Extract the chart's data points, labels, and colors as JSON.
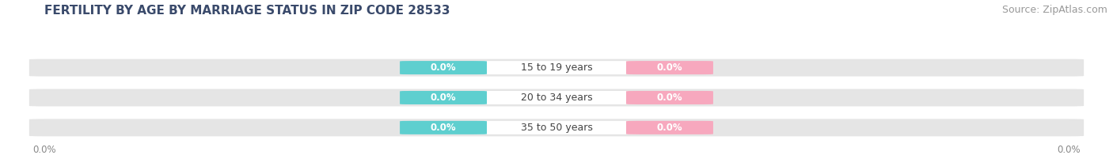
{
  "title": "FERTILITY BY AGE BY MARRIAGE STATUS IN ZIP CODE 28533",
  "source": "Source: ZipAtlas.com",
  "categories": [
    "15 to 19 years",
    "20 to 34 years",
    "35 to 50 years"
  ],
  "married_values": [
    0.0,
    0.0,
    0.0
  ],
  "unmarried_values": [
    0.0,
    0.0,
    0.0
  ],
  "married_color": "#5ecfcf",
  "unmarried_color": "#f7a8be",
  "bar_bg_color": "#e5e5e5",
  "title_color": "#3a4a6b",
  "source_color": "#999999",
  "label_color": "#ffffff",
  "category_color": "#444444",
  "tick_color": "#888888",
  "background_color": "#ffffff",
  "title_fontsize": 11,
  "source_fontsize": 9,
  "value_fontsize": 8.5,
  "category_fontsize": 9,
  "tick_fontsize": 8.5,
  "legend_fontsize": 9
}
